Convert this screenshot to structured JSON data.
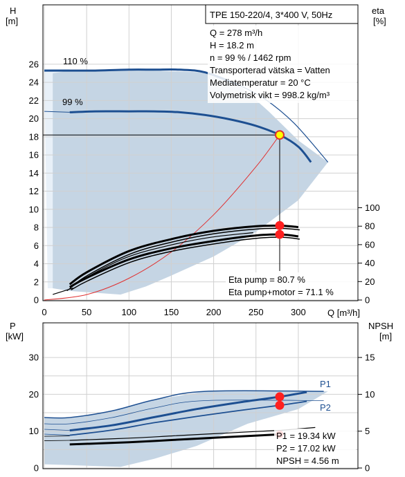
{
  "chart_data": [
    {
      "type": "line",
      "title": "TPE 150-220/4, 3*400 V, 50Hz",
      "ylabel_left": "H",
      "ylabel_left_unit": "[m]",
      "ylabel_right": "eta",
      "ylabel_right_unit": "[%]",
      "xlabel": "Q [m³/h]",
      "xlim": [
        0,
        320
      ],
      "ylim_left": [
        0,
        28
      ],
      "ylim_right": [
        0,
        100
      ],
      "x_ticks": [
        "0",
        "50",
        "100",
        "150",
        "200",
        "250",
        "300"
      ],
      "y_ticks_left": [
        "0",
        "2",
        "4",
        "6",
        "8",
        "10",
        "12",
        "14",
        "16",
        "18",
        "20",
        "22",
        "24",
        "26"
      ],
      "y_ticks_right": [
        "0",
        "20",
        "40",
        "60",
        "80",
        "100"
      ],
      "grid": true,
      "info_lines": [
        "Q = 278 m³/h",
        "H = 18.2 m",
        "n = 99 % / 1462 rpm",
        "Transporterad vätska = Vatten",
        "Mediatemperatur = 20 °C",
        "Volymetrisk vikt = 998.2 kg/m³"
      ],
      "eta_lines": [
        "Eta pump = 80.7 %",
        "Eta pump+motor = 71.1 %"
      ],
      "series": [
        {
          "name": "110 %",
          "color": "#1d4f91",
          "x": [
            0,
            30,
            60,
            100,
            130,
            160,
            190,
            230
          ],
          "y": [
            25.3,
            25.3,
            25.3,
            25.4,
            25.4,
            25.4,
            25.1,
            23.7
          ]
        },
        {
          "name": "99 %",
          "color": "#1d4f91",
          "x": [
            30,
            60,
            100,
            130,
            160,
            190,
            220,
            250,
            278,
            300,
            315
          ],
          "y": [
            20.7,
            20.8,
            20.8,
            20.8,
            20.7,
            20.4,
            19.9,
            19.2,
            18.2,
            16.9,
            15.2
          ]
        }
      ],
      "efficiency_curves": [
        {
          "x": [
            30,
            50,
            100,
            150,
            200,
            250,
            280,
            300
          ],
          "y": [
            17,
            30,
            53,
            66,
            75,
            80,
            80.5,
            79
          ]
        },
        {
          "x": [
            30,
            50,
            100,
            150,
            200,
            250,
            280,
            300
          ],
          "y": [
            14,
            24,
            44,
            56,
            64,
            70,
            71,
            69
          ]
        }
      ],
      "system_curve": {
        "color": "#e03030",
        "x": [
          0,
          50,
          100,
          150,
          200,
          250,
          278
        ],
        "y": [
          0,
          0.6,
          2.4,
          5.3,
          9.4,
          14.7,
          18.2
        ]
      },
      "operating_point": {
        "x": 278,
        "h": 18.2,
        "eta_pump": 80.7,
        "eta_total": 71.1,
        "marker_fill": "#ffff00",
        "marker_stroke": "#e03030"
      },
      "area_color": "#c5d5e4",
      "area_color_light": "#e8f0f8"
    },
    {
      "type": "line",
      "ylabel_left": "P",
      "ylabel_left_unit": "[kW]",
      "ylabel_right": "NPSH",
      "ylabel_right_unit": "[m]",
      "xlim": [
        0,
        320
      ],
      "ylim_left": [
        0,
        35
      ],
      "ylim_right": [
        0,
        17.5
      ],
      "y_ticks_left": [
        "0",
        "10",
        "20",
        "30"
      ],
      "y_ticks_right": [
        "0",
        "5",
        "10",
        "15"
      ],
      "grid": true,
      "info_lines": [
        "P1 = 19.34 kW",
        "P2 = 17.02 kW",
        "NPSH = 4.56 m"
      ],
      "series": [
        {
          "name": "P1",
          "color": "#1d4f91",
          "x": [
            30,
            80,
            130,
            180,
            230,
            278,
            310
          ],
          "y": [
            10.2,
            11.6,
            13.8,
            16.0,
            17.8,
            19.34,
            20.6
          ]
        },
        {
          "name": "P2",
          "color": "#1d4f91",
          "x": [
            30,
            80,
            130,
            180,
            230,
            278,
            310
          ],
          "y": [
            8.9,
            10.3,
            12.3,
            14.0,
            15.6,
            17.02,
            18.1
          ]
        },
        {
          "name": "NPSH",
          "color": "#000000",
          "axis": "right",
          "x": [
            30,
            100,
            150,
            200,
            250,
            278
          ],
          "y": [
            3.2,
            3.5,
            3.8,
            4.1,
            4.4,
            4.56
          ]
        }
      ],
      "operating_points": [
        {
          "x": 278,
          "y": 19.34
        },
        {
          "x": 278,
          "y": 17.02
        }
      ]
    }
  ]
}
